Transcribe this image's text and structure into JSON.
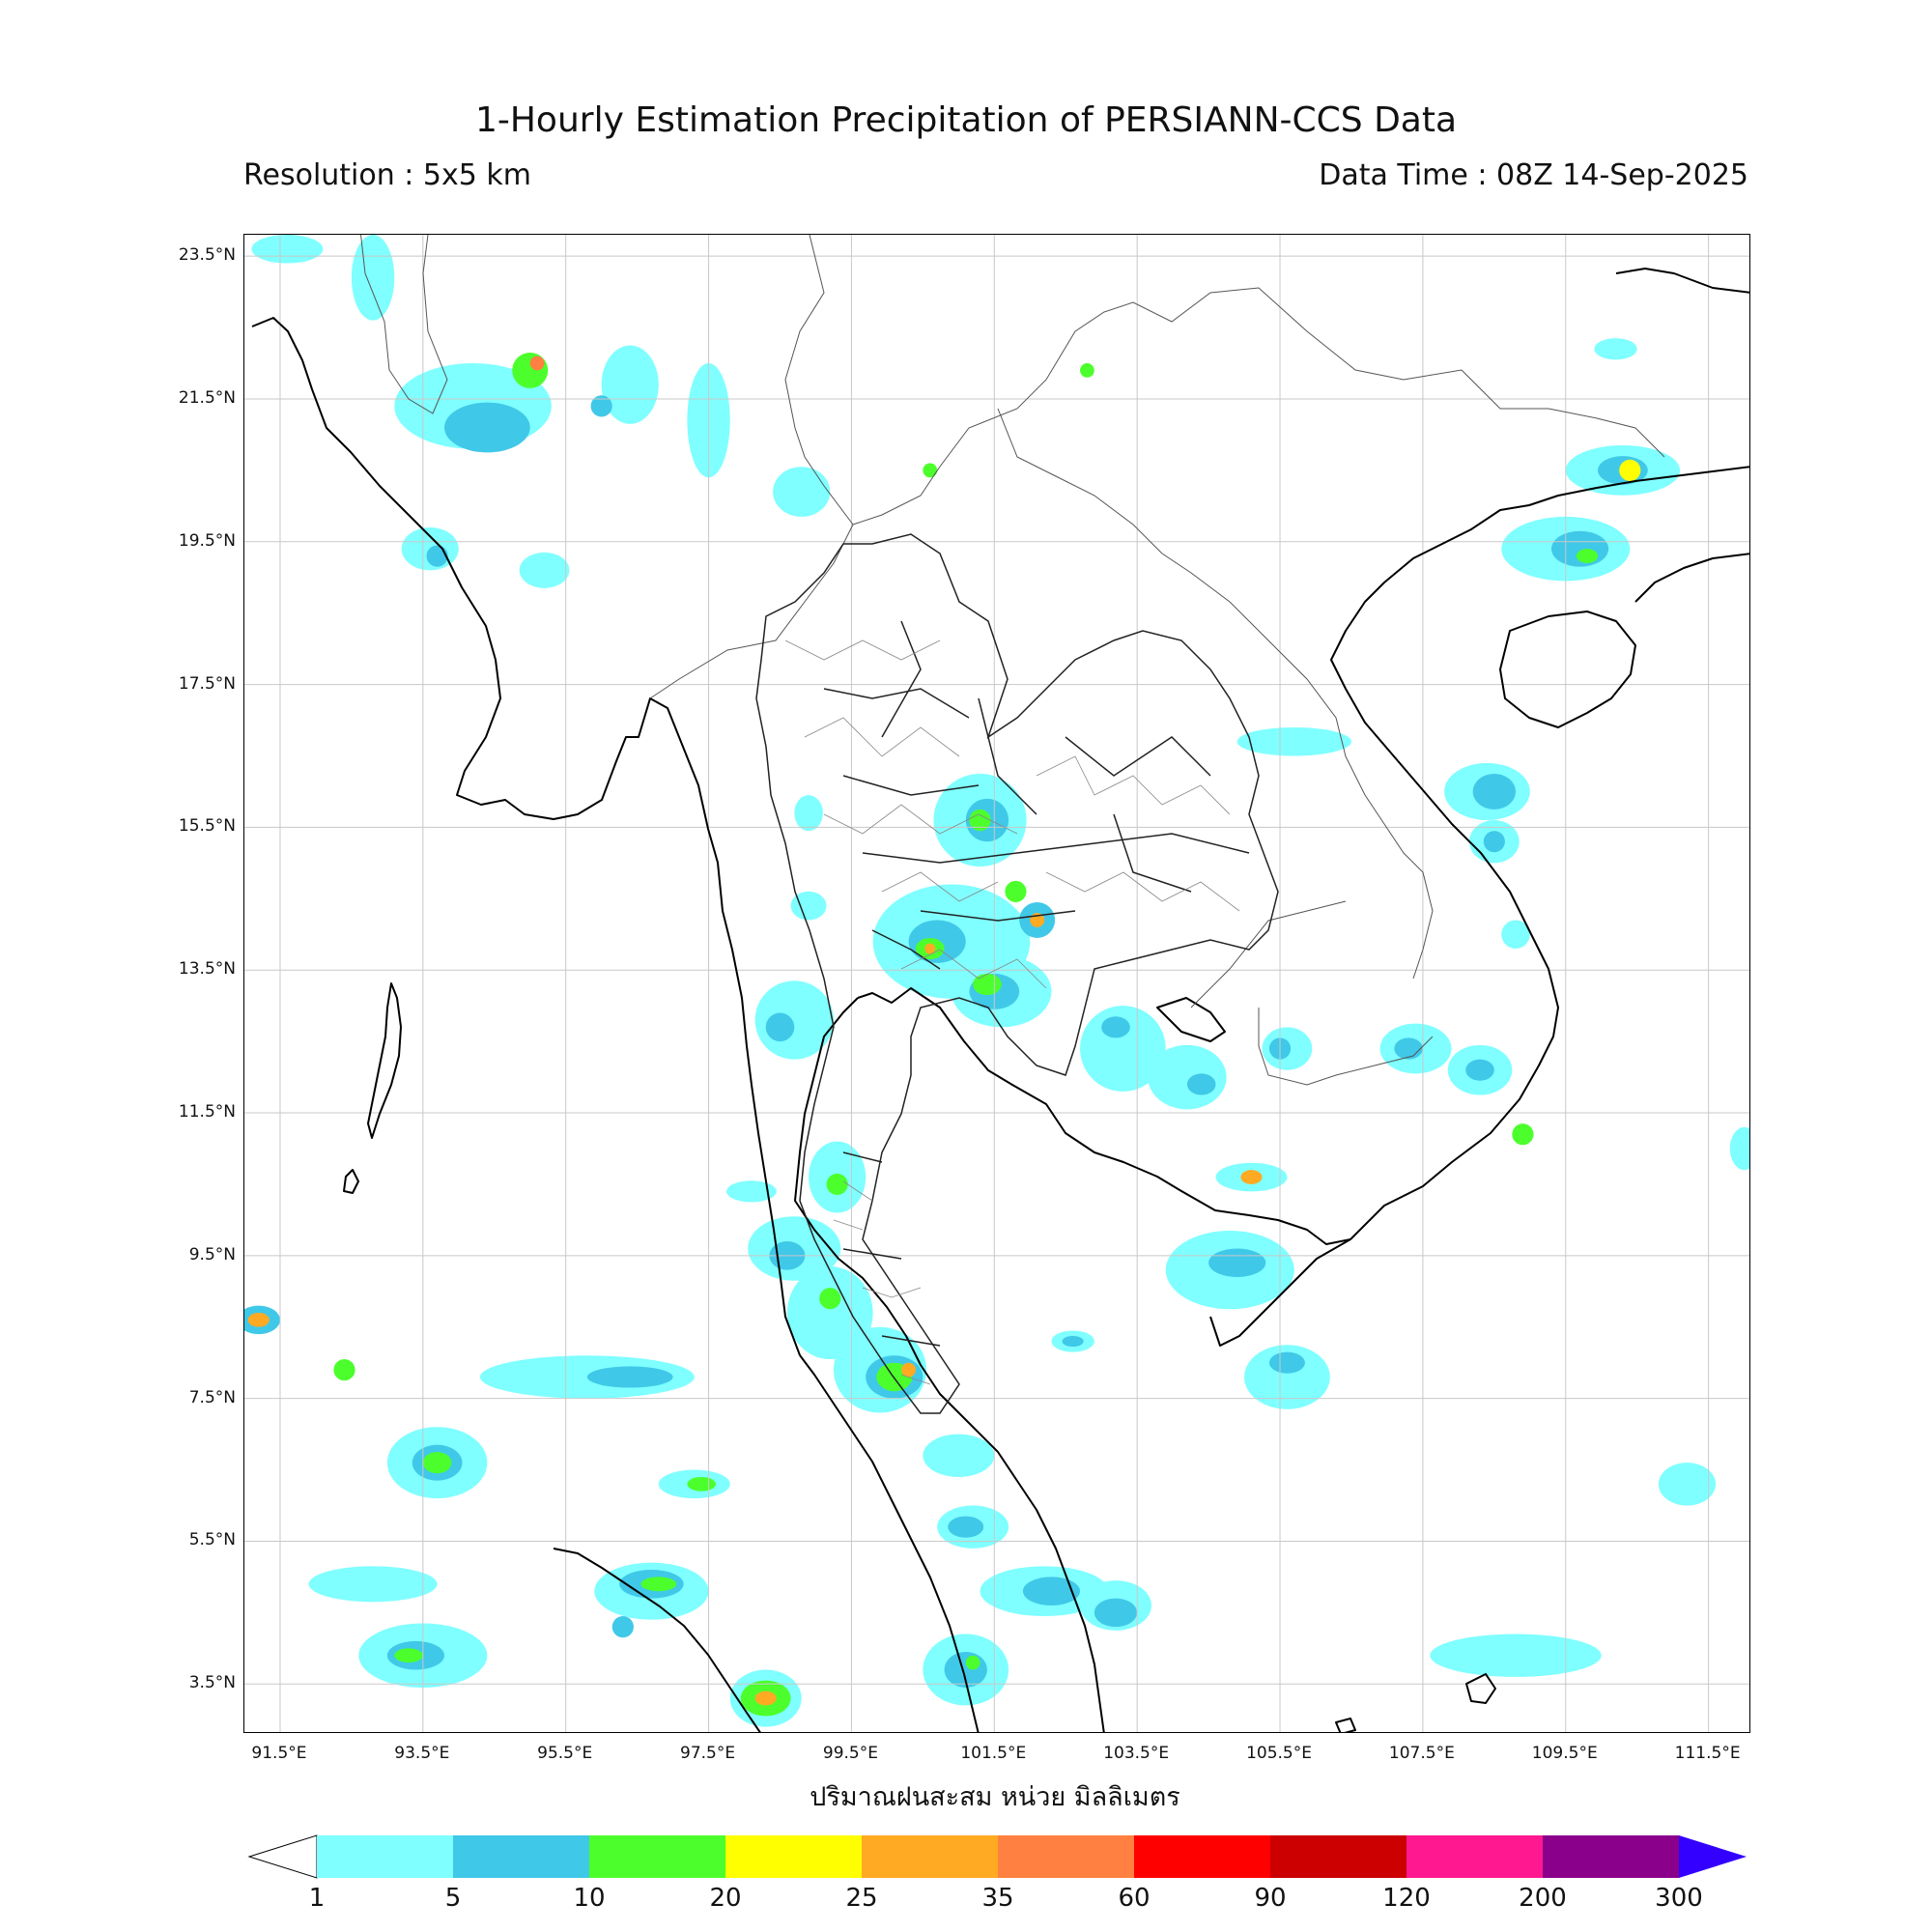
{
  "header": {
    "title": "1-Hourly Estimation Precipitation of PERSIANN-CCS Data",
    "resolution": "Resolution : 5x5 km",
    "data_time": "Data Time : 08Z 14-Sep-2025"
  },
  "map": {
    "lat_range": [
      2.8,
      23.8
    ],
    "lon_range": [
      91.0,
      112.1
    ],
    "lat_ticks": [
      "23.5°N",
      "21.5°N",
      "19.5°N",
      "17.5°N",
      "15.5°N",
      "13.5°N",
      "11.5°N",
      "9.5°N",
      "7.5°N",
      "5.5°N",
      "3.5°N"
    ],
    "lon_ticks": [
      "91.5°E",
      "93.5°E",
      "95.5°E",
      "97.5°E",
      "99.5°E",
      "101.5°E",
      "103.5°E",
      "105.5°E",
      "107.5°E",
      "109.5°E",
      "111.5°E"
    ],
    "grid": true,
    "unit_label": "ปริมาณฝนสะสม หน่วย มิลลิเมตร"
  },
  "colorbar": {
    "labels": [
      "1",
      "5",
      "10",
      "20",
      "25",
      "35",
      "60",
      "90",
      "120",
      "200",
      "300"
    ],
    "colors": [
      "#7fffff",
      "#40c8e8",
      "#4cff2c",
      "#ffff00",
      "#ffaa22",
      "#ff8040",
      "#ff0000",
      "#cc0000",
      "#ff1890",
      "#8b008b"
    ],
    "extend_low_color": "#ffffff",
    "extend_high_color": "#3300ff"
  },
  "precip_areas": [
    {
      "lon": 91.6,
      "lat": 23.6,
      "w": 1.0,
      "h": 0.4,
      "c": 0
    },
    {
      "lon": 92.8,
      "lat": 23.2,
      "w": 0.6,
      "h": 1.2,
      "c": 0
    },
    {
      "lon": 94.2,
      "lat": 21.4,
      "w": 2.2,
      "h": 1.2,
      "c": 0
    },
    {
      "lon": 94.4,
      "lat": 21.1,
      "w": 1.2,
      "h": 0.7,
      "c": 1
    },
    {
      "lon": 95.0,
      "lat": 21.9,
      "w": 0.5,
      "h": 0.5,
      "c": 2
    },
    {
      "lon": 95.1,
      "lat": 22.0,
      "w": 0.2,
      "h": 0.2,
      "c": 5
    },
    {
      "lon": 96.4,
      "lat": 21.7,
      "w": 0.8,
      "h": 1.1,
      "c": 0
    },
    {
      "lon": 96.0,
      "lat": 21.4,
      "w": 0.3,
      "h": 0.3,
      "c": 1
    },
    {
      "lon": 97.5,
      "lat": 21.2,
      "w": 0.6,
      "h": 1.6,
      "c": 0
    },
    {
      "lon": 95.2,
      "lat": 19.1,
      "w": 0.7,
      "h": 0.5,
      "c": 0
    },
    {
      "lon": 93.6,
      "lat": 19.4,
      "w": 0.8,
      "h": 0.6,
      "c": 0
    },
    {
      "lon": 93.7,
      "lat": 19.3,
      "w": 0.3,
      "h": 0.3,
      "c": 1
    },
    {
      "lon": 100.6,
      "lat": 20.5,
      "w": 0.2,
      "h": 0.2,
      "c": 2
    },
    {
      "lon": 98.8,
      "lat": 20.2,
      "w": 0.8,
      "h": 0.7,
      "c": 0
    },
    {
      "lon": 102.8,
      "lat": 21.9,
      "w": 0.2,
      "h": 0.2,
      "c": 2
    },
    {
      "lon": 110.3,
      "lat": 20.5,
      "w": 1.6,
      "h": 0.7,
      "c": 0
    },
    {
      "lon": 110.3,
      "lat": 20.5,
      "w": 0.7,
      "h": 0.4,
      "c": 1
    },
    {
      "lon": 110.4,
      "lat": 20.5,
      "w": 0.3,
      "h": 0.3,
      "c": 3
    },
    {
      "lon": 109.5,
      "lat": 19.4,
      "w": 1.8,
      "h": 0.9,
      "c": 0
    },
    {
      "lon": 109.7,
      "lat": 19.4,
      "w": 0.8,
      "h": 0.5,
      "c": 1
    },
    {
      "lon": 109.8,
      "lat": 19.3,
      "w": 0.3,
      "h": 0.2,
      "c": 2
    },
    {
      "lon": 110.2,
      "lat": 22.2,
      "w": 0.6,
      "h": 0.3,
      "c": 0
    },
    {
      "lon": 105.7,
      "lat": 16.7,
      "w": 1.6,
      "h": 0.4,
      "c": 0
    },
    {
      "lon": 108.4,
      "lat": 16.0,
      "w": 1.2,
      "h": 0.8,
      "c": 0
    },
    {
      "lon": 108.5,
      "lat": 16.0,
      "w": 0.6,
      "h": 0.5,
      "c": 1
    },
    {
      "lon": 108.5,
      "lat": 15.3,
      "w": 0.7,
      "h": 0.6,
      "c": 0
    },
    {
      "lon": 108.5,
      "lat": 15.3,
      "w": 0.3,
      "h": 0.3,
      "c": 1
    },
    {
      "lon": 101.3,
      "lat": 15.6,
      "w": 1.3,
      "h": 1.3,
      "c": 0
    },
    {
      "lon": 101.4,
      "lat": 15.6,
      "w": 0.6,
      "h": 0.6,
      "c": 1
    },
    {
      "lon": 101.3,
      "lat": 15.6,
      "w": 0.3,
      "h": 0.3,
      "c": 2
    },
    {
      "lon": 100.9,
      "lat": 13.9,
      "w": 2.2,
      "h": 1.6,
      "c": 0
    },
    {
      "lon": 100.7,
      "lat": 13.9,
      "w": 0.8,
      "h": 0.6,
      "c": 1
    },
    {
      "lon": 100.6,
      "lat": 13.8,
      "w": 0.4,
      "h": 0.3,
      "c": 2
    },
    {
      "lon": 100.6,
      "lat": 13.8,
      "w": 0.15,
      "h": 0.15,
      "c": 4
    },
    {
      "lon": 101.6,
      "lat": 13.2,
      "w": 1.4,
      "h": 1.0,
      "c": 0
    },
    {
      "lon": 101.5,
      "lat": 13.2,
      "w": 0.7,
      "h": 0.5,
      "c": 1
    },
    {
      "lon": 101.4,
      "lat": 13.3,
      "w": 0.4,
      "h": 0.3,
      "c": 2
    },
    {
      "lon": 102.1,
      "lat": 14.2,
      "w": 0.5,
      "h": 0.5,
      "c": 1
    },
    {
      "lon": 102.1,
      "lat": 14.2,
      "w": 0.2,
      "h": 0.2,
      "c": 4
    },
    {
      "lon": 101.8,
      "lat": 14.6,
      "w": 0.3,
      "h": 0.3,
      "c": 2
    },
    {
      "lon": 103.3,
      "lat": 12.4,
      "w": 1.2,
      "h": 1.2,
      "c": 0
    },
    {
      "lon": 103.2,
      "lat": 12.7,
      "w": 0.4,
      "h": 0.3,
      "c": 1
    },
    {
      "lon": 104.2,
      "lat": 12.0,
      "w": 1.1,
      "h": 0.9,
      "c": 0
    },
    {
      "lon": 104.4,
      "lat": 11.9,
      "w": 0.4,
      "h": 0.3,
      "c": 1
    },
    {
      "lon": 105.6,
      "lat": 12.4,
      "w": 0.7,
      "h": 0.6,
      "c": 0
    },
    {
      "lon": 105.5,
      "lat": 12.4,
      "w": 0.3,
      "h": 0.3,
      "c": 1
    },
    {
      "lon": 107.4,
      "lat": 12.4,
      "w": 1.0,
      "h": 0.7,
      "c": 0
    },
    {
      "lon": 107.3,
      "lat": 12.4,
      "w": 0.4,
      "h": 0.3,
      "c": 1
    },
    {
      "lon": 108.3,
      "lat": 12.1,
      "w": 0.9,
      "h": 0.7,
      "c": 0
    },
    {
      "lon": 108.3,
      "lat": 12.1,
      "w": 0.4,
      "h": 0.3,
      "c": 1
    },
    {
      "lon": 98.7,
      "lat": 12.8,
      "w": 1.1,
      "h": 1.1,
      "c": 0
    },
    {
      "lon": 98.5,
      "lat": 12.7,
      "w": 0.4,
      "h": 0.4,
      "c": 1
    },
    {
      "lon": 99.3,
      "lat": 10.6,
      "w": 0.8,
      "h": 1.0,
      "c": 0
    },
    {
      "lon": 99.3,
      "lat": 10.5,
      "w": 0.3,
      "h": 0.3,
      "c": 2
    },
    {
      "lon": 98.7,
      "lat": 9.6,
      "w": 1.3,
      "h": 0.9,
      "c": 0
    },
    {
      "lon": 98.6,
      "lat": 9.5,
      "w": 0.5,
      "h": 0.4,
      "c": 1
    },
    {
      "lon": 99.2,
      "lat": 8.7,
      "w": 1.2,
      "h": 1.3,
      "c": 0
    },
    {
      "lon": 99.2,
      "lat": 8.9,
      "w": 0.3,
      "h": 0.3,
      "c": 2
    },
    {
      "lon": 99.9,
      "lat": 7.9,
      "w": 1.3,
      "h": 1.2,
      "c": 0
    },
    {
      "lon": 100.1,
      "lat": 7.8,
      "w": 0.8,
      "h": 0.6,
      "c": 1
    },
    {
      "lon": 100.1,
      "lat": 7.8,
      "w": 0.5,
      "h": 0.4,
      "c": 2
    },
    {
      "lon": 100.3,
      "lat": 7.9,
      "w": 0.2,
      "h": 0.2,
      "c": 4
    },
    {
      "lon": 101.0,
      "lat": 6.7,
      "w": 1.0,
      "h": 0.6,
      "c": 0
    },
    {
      "lon": 101.2,
      "lat": 5.7,
      "w": 1.0,
      "h": 0.6,
      "c": 0
    },
    {
      "lon": 101.1,
      "lat": 5.7,
      "w": 0.5,
      "h": 0.3,
      "c": 1
    },
    {
      "lon": 102.2,
      "lat": 4.8,
      "w": 1.8,
      "h": 0.7,
      "c": 0
    },
    {
      "lon": 102.3,
      "lat": 4.8,
      "w": 0.8,
      "h": 0.4,
      "c": 1
    },
    {
      "lon": 103.2,
      "lat": 4.6,
      "w": 1.0,
      "h": 0.7,
      "c": 0
    },
    {
      "lon": 103.2,
      "lat": 4.5,
      "w": 0.6,
      "h": 0.4,
      "c": 1
    },
    {
      "lon": 101.1,
      "lat": 3.7,
      "w": 1.2,
      "h": 1.0,
      "c": 0
    },
    {
      "lon": 101.1,
      "lat": 3.7,
      "w": 0.6,
      "h": 0.5,
      "c": 1
    },
    {
      "lon": 101.2,
      "lat": 3.8,
      "w": 0.2,
      "h": 0.2,
      "c": 2
    },
    {
      "lon": 96.7,
      "lat": 4.8,
      "w": 1.6,
      "h": 0.8,
      "c": 0
    },
    {
      "lon": 96.7,
      "lat": 4.9,
      "w": 0.9,
      "h": 0.4,
      "c": 1
    },
    {
      "lon": 96.8,
      "lat": 4.9,
      "w": 0.5,
      "h": 0.2,
      "c": 2
    },
    {
      "lon": 98.3,
      "lat": 3.3,
      "w": 1.0,
      "h": 0.8,
      "c": 0
    },
    {
      "lon": 98.3,
      "lat": 3.3,
      "w": 0.7,
      "h": 0.5,
      "c": 2
    },
    {
      "lon": 98.3,
      "lat": 3.3,
      "w": 0.3,
      "h": 0.2,
      "c": 4
    },
    {
      "lon": 93.5,
      "lat": 3.9,
      "w": 1.8,
      "h": 0.9,
      "c": 0
    },
    {
      "lon": 93.4,
      "lat": 3.9,
      "w": 0.8,
      "h": 0.4,
      "c": 1
    },
    {
      "lon": 93.3,
      "lat": 3.9,
      "w": 0.4,
      "h": 0.2,
      "c": 2
    },
    {
      "lon": 92.8,
      "lat": 4.9,
      "w": 1.8,
      "h": 0.5,
      "c": 0
    },
    {
      "lon": 93.7,
      "lat": 6.6,
      "w": 1.4,
      "h": 1.0,
      "c": 0
    },
    {
      "lon": 93.7,
      "lat": 6.6,
      "w": 0.7,
      "h": 0.5,
      "c": 1
    },
    {
      "lon": 93.7,
      "lat": 6.6,
      "w": 0.4,
      "h": 0.3,
      "c": 2
    },
    {
      "lon": 95.8,
      "lat": 7.8,
      "w": 3.0,
      "h": 0.6,
      "c": 0
    },
    {
      "lon": 96.4,
      "lat": 7.8,
      "w": 1.2,
      "h": 0.3,
      "c": 1
    },
    {
      "lon": 97.3,
      "lat": 6.3,
      "w": 1.0,
      "h": 0.4,
      "c": 0
    },
    {
      "lon": 97.4,
      "lat": 6.3,
      "w": 0.4,
      "h": 0.2,
      "c": 2
    },
    {
      "lon": 91.2,
      "lat": 8.6,
      "w": 0.6,
      "h": 0.4,
      "c": 1
    },
    {
      "lon": 91.2,
      "lat": 8.6,
      "w": 0.3,
      "h": 0.2,
      "c": 4
    },
    {
      "lon": 104.8,
      "lat": 9.3,
      "w": 1.8,
      "h": 1.1,
      "c": 0
    },
    {
      "lon": 104.9,
      "lat": 9.4,
      "w": 0.8,
      "h": 0.4,
      "c": 1
    },
    {
      "lon": 105.1,
      "lat": 10.6,
      "w": 1.0,
      "h": 0.4,
      "c": 0
    },
    {
      "lon": 105.1,
      "lat": 10.6,
      "w": 0.3,
      "h": 0.2,
      "c": 4
    },
    {
      "lon": 105.6,
      "lat": 7.8,
      "w": 1.2,
      "h": 0.9,
      "c": 0
    },
    {
      "lon": 105.6,
      "lat": 8.0,
      "w": 0.5,
      "h": 0.3,
      "c": 1
    },
    {
      "lon": 108.8,
      "lat": 3.9,
      "w": 2.4,
      "h": 0.6,
      "c": 0
    },
    {
      "lon": 111.2,
      "lat": 6.3,
      "w": 0.8,
      "h": 0.6,
      "c": 0
    },
    {
      "lon": 112.0,
      "lat": 11.0,
      "w": 0.4,
      "h": 0.6,
      "c": 0
    },
    {
      "lon": 102.6,
      "lat": 8.3,
      "w": 0.6,
      "h": 0.3,
      "c": 0
    },
    {
      "lon": 102.6,
      "lat": 8.3,
      "w": 0.3,
      "h": 0.15,
      "c": 1
    },
    {
      "lon": 108.8,
      "lat": 14.0,
      "w": 0.4,
      "h": 0.4,
      "c": 0
    },
    {
      "lon": 108.9,
      "lat": 11.2,
      "w": 0.3,
      "h": 0.3,
      "c": 2
    },
    {
      "lon": 92.4,
      "lat": 7.9,
      "w": 0.3,
      "h": 0.3,
      "c": 2
    },
    {
      "lon": 96.3,
      "lat": 4.3,
      "w": 0.3,
      "h": 0.3,
      "c": 1
    },
    {
      "lon": 98.9,
      "lat": 15.7,
      "w": 0.4,
      "h": 0.5,
      "c": 0
    },
    {
      "lon": 98.9,
      "lat": 14.4,
      "w": 0.5,
      "h": 0.4,
      "c": 0
    },
    {
      "lon": 98.1,
      "lat": 10.4,
      "w": 0.7,
      "h": 0.3,
      "c": 0
    }
  ]
}
